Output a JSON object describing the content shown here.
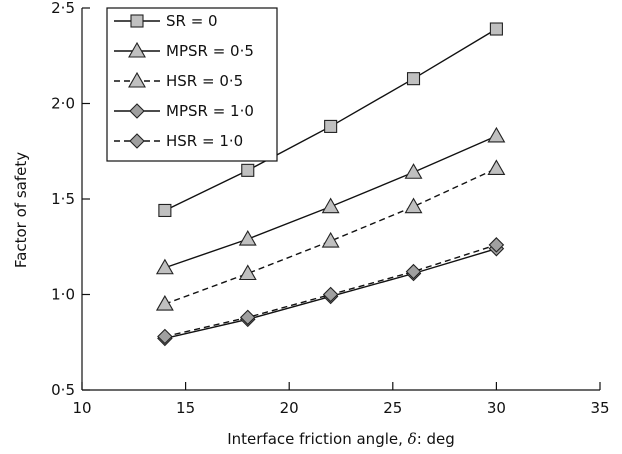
{
  "chart_data": {
    "type": "line",
    "xlabel_prefix": "Interface friction angle, ",
    "xlabel_symbol": "δ",
    "xlabel_suffix": ": deg",
    "ylabel": "Factor of safety",
    "xlim": [
      10,
      35
    ],
    "ylim": [
      0.5,
      2.5
    ],
    "x_ticks": [
      10,
      15,
      20,
      25,
      30,
      35
    ],
    "x_tick_labels": [
      "10",
      "15",
      "20",
      "25",
      "30",
      "35"
    ],
    "y_ticks": [
      0.5,
      1.0,
      1.5,
      2.0,
      2.5
    ],
    "y_tick_labels": [
      "0·5",
      "1·0",
      "1·5",
      "2·0",
      "2·5"
    ],
    "grid": false,
    "legend_position": "top-left",
    "x": [
      14,
      18,
      22,
      26,
      30
    ],
    "series": [
      {
        "name": "SR = 0",
        "values": [
          1.44,
          1.65,
          1.88,
          2.13,
          2.39
        ],
        "marker": "square",
        "dash": "solid",
        "fill": "#c0c0c0"
      },
      {
        "name": "MPSR = 0·5",
        "values": [
          1.14,
          1.29,
          1.46,
          1.64,
          1.83
        ],
        "marker": "triangle",
        "dash": "solid",
        "fill": "#c0c0c0"
      },
      {
        "name": "HSR = 0·5",
        "values": [
          0.95,
          1.11,
          1.28,
          1.46,
          1.66
        ],
        "marker": "triangle",
        "dash": "dashed",
        "fill": "#c0c0c0"
      },
      {
        "name": "MPSR = 1·0",
        "values": [
          0.77,
          0.87,
          0.99,
          1.11,
          1.24
        ],
        "marker": "diamond",
        "dash": "solid",
        "fill": "#a0a0a0"
      },
      {
        "name": "HSR = 1·0",
        "values": [
          0.78,
          0.88,
          1.0,
          1.12,
          1.26
        ],
        "marker": "diamond",
        "dash": "dashed",
        "fill": "#a0a0a0"
      }
    ]
  }
}
